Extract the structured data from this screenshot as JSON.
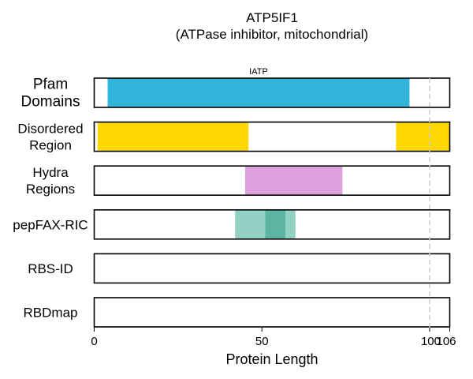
{
  "chart_data": {
    "type": "domain-track",
    "title": [
      "ATP5IF1",
      "(ATPase inhibitor, mitochondrial)"
    ],
    "xlabel": "Protein Length",
    "protein_length": 106,
    "xlim": [
      0,
      106
    ],
    "x_ticks": [
      {
        "value": 0,
        "label": "0"
      },
      {
        "value": 50,
        "label": "50"
      },
      {
        "value": 100,
        "label": "100"
      },
      {
        "value": 106,
        "label": "106"
      }
    ],
    "reference_line": {
      "x": 100,
      "style": "dashed",
      "color": "#cccccc"
    },
    "tracks": [
      {
        "label": [
          "Pfam",
          "Domains"
        ],
        "large_label": true,
        "segments": [
          {
            "start": 4,
            "end": 94,
            "color": "#31b4dc",
            "label": "IATP"
          }
        ]
      },
      {
        "label": [
          "Disordered",
          "Region"
        ],
        "segments": [
          {
            "start": 1,
            "end": 46,
            "color": "#ffd700"
          },
          {
            "start": 90,
            "end": 106,
            "color": "#ffd700"
          }
        ]
      },
      {
        "label": [
          "Hydra",
          "Regions"
        ],
        "segments": [
          {
            "start": 45,
            "end": 74,
            "color": "#dda0dd"
          }
        ]
      },
      {
        "label": [
          "pepFAX-RIC"
        ],
        "segments": [
          {
            "start": 42,
            "end": 60,
            "color": "#92d1c3"
          },
          {
            "start": 51,
            "end": 57,
            "color": "#5bb5a2"
          }
        ]
      },
      {
        "label": [
          "RBS-ID"
        ],
        "segments": []
      },
      {
        "label": [
          "RBDmap"
        ],
        "segments": []
      }
    ]
  }
}
